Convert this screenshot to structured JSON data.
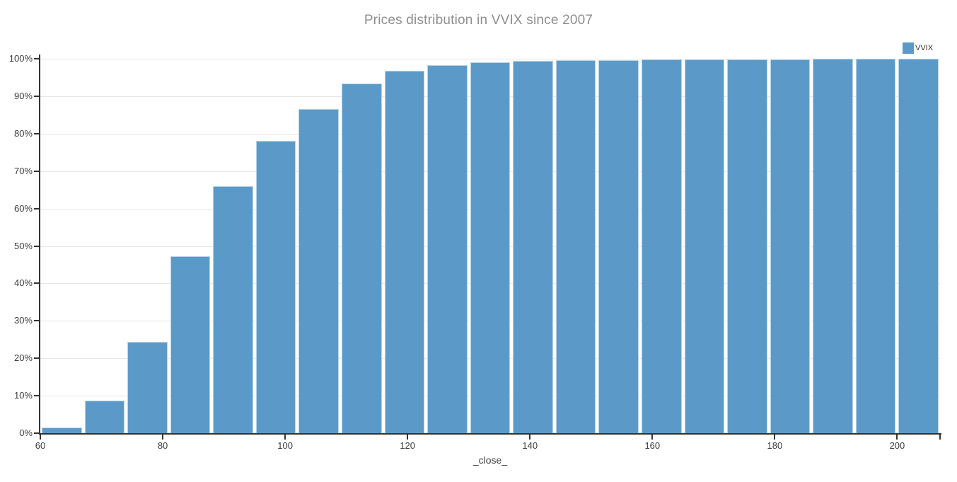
{
  "header": {
    "title": "Prices distribution in VVIX since 2007"
  },
  "legend": {
    "label": "VVIX",
    "position": "top-right"
  },
  "xaxis_label": "_close_",
  "chart_data": {
    "type": "bar",
    "subtype": "cumulative-distribution-histogram",
    "title": "Prices distribution in VVIX since 2007",
    "xlabel": "_close_",
    "ylabel": "",
    "legend_entries": [
      "VVIX"
    ],
    "grid": "horizontal-only",
    "bin_width": 7,
    "x_axis": {
      "range": [
        60,
        207
      ],
      "tick_values": [
        60,
        80,
        100,
        120,
        140,
        160,
        180,
        200
      ],
      "tick_labels": [
        "60",
        "80",
        "100",
        "120",
        "140",
        "160",
        "180",
        "200"
      ],
      "end_tick_value": 207
    },
    "y_axis": {
      "range_pct": [
        0,
        101.3
      ],
      "tick_values": [
        0,
        10,
        20,
        30,
        40,
        50,
        60,
        70,
        80,
        90,
        100
      ],
      "tick_labels": [
        "0%",
        "10%",
        "20%",
        "30%",
        "40%",
        "50%",
        "60%",
        "70%",
        "80%",
        "90%",
        "100%"
      ]
    },
    "series": [
      {
        "name": "VVIX",
        "bin_start": [
          60,
          67,
          74,
          81,
          88,
          95,
          102,
          109,
          116,
          123,
          130,
          137,
          144,
          151,
          158,
          165,
          172,
          179,
          186,
          193,
          200
        ],
        "bin_end": [
          67,
          74,
          81,
          88,
          95,
          102,
          109,
          116,
          123,
          130,
          137,
          144,
          151,
          158,
          165,
          172,
          179,
          186,
          193,
          200,
          207
        ],
        "cumulative_pct": [
          1.5,
          8.7,
          24.4,
          47.3,
          65.9,
          78.0,
          86.5,
          93.3,
          96.8,
          98.3,
          99.0,
          99.4,
          99.6,
          99.7,
          99.75,
          99.8,
          99.85,
          99.9,
          99.93,
          99.96,
          100.0
        ]
      }
    ],
    "colors": {
      "bar_fill": "#5b9ac8",
      "bar_edge": "#b9d4e8",
      "axis_line": "#333333",
      "grid_line": "#e7e7e7",
      "title": "#8e8e8e",
      "tick_label": "#3b3b3b",
      "axis_label": "#444444",
      "legend_label": "#333333"
    }
  }
}
